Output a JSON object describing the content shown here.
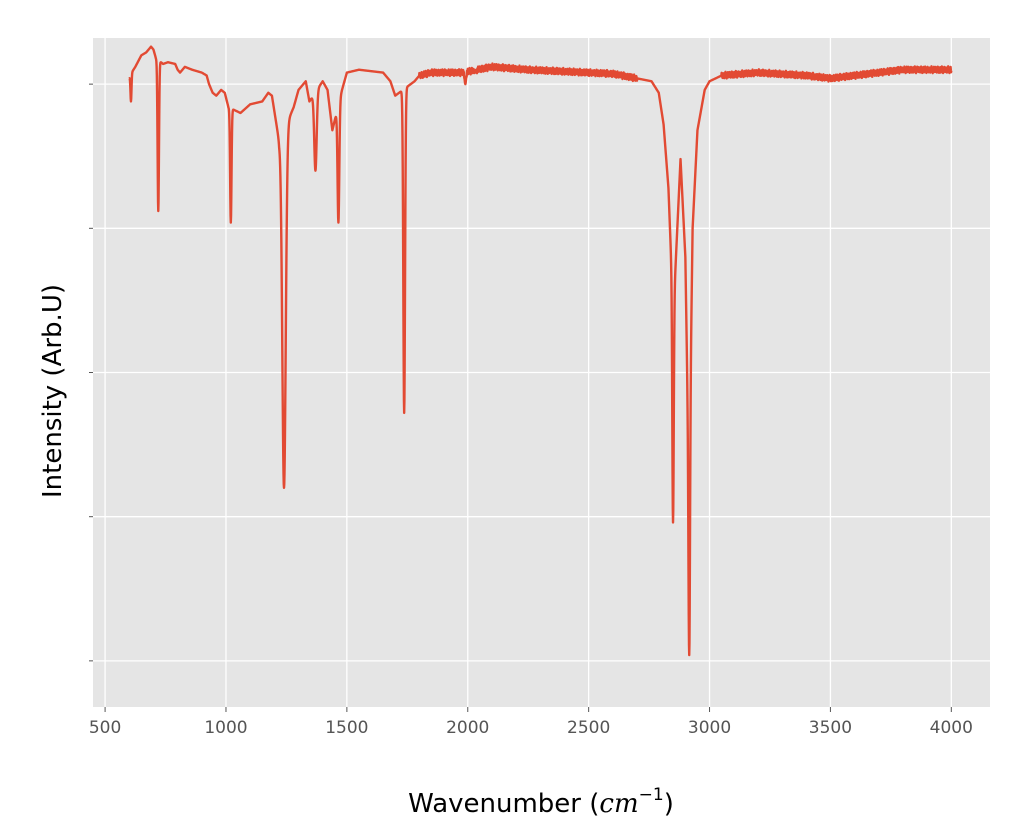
{
  "chart_data": {
    "type": "line",
    "title": "",
    "xlabel": {
      "prefix": "Wavenumber (",
      "unit_base": "cm",
      "unit_exponent": "−1",
      "suffix": ")"
    },
    "ylabel": "Intensity (Arb.U)",
    "xlim": [
      450,
      4160
    ],
    "ylim": [
      -0.08,
      1.08
    ],
    "xticks": [
      500,
      1000,
      1500,
      2000,
      2500,
      3000,
      3500,
      4000
    ],
    "yticks": [
      0.0,
      0.25,
      0.5,
      0.75,
      1.0
    ],
    "ytick_labels_visible": false,
    "grid": true,
    "background_color": "#e5e5e5",
    "grid_color": "#ffffff",
    "line_color": "#e24a33",
    "series": [
      {
        "baseline": [
          [
            600,
            1.01
          ],
          [
            610,
            1.02
          ],
          [
            625,
            1.03
          ],
          [
            650,
            1.05
          ],
          [
            670,
            1.055
          ],
          [
            690,
            1.065
          ],
          [
            700,
            1.06
          ],
          [
            710,
            1.045
          ],
          [
            740,
            1.035
          ],
          [
            760,
            1.038
          ],
          [
            790,
            1.035
          ],
          [
            800,
            1.025
          ],
          [
            810,
            1.02
          ],
          [
            830,
            1.03
          ],
          [
            860,
            1.025
          ],
          [
            900,
            1.02
          ],
          [
            920,
            1.015
          ],
          [
            930,
            1.0
          ],
          [
            945,
            0.985
          ],
          [
            960,
            0.98
          ],
          [
            980,
            0.99
          ],
          [
            995,
            0.985
          ],
          [
            1010,
            0.96
          ],
          [
            1060,
            0.95
          ],
          [
            1100,
            0.965
          ],
          [
            1150,
            0.97
          ],
          [
            1175,
            0.985
          ],
          [
            1190,
            0.98
          ],
          [
            1220,
            0.9
          ],
          [
            1280,
            0.96
          ],
          [
            1300,
            0.99
          ],
          [
            1330,
            1.005
          ],
          [
            1345,
            0.97
          ],
          [
            1400,
            1.005
          ],
          [
            1420,
            0.99
          ],
          [
            1440,
            0.92
          ],
          [
            1480,
            0.99
          ],
          [
            1500,
            1.02
          ],
          [
            1550,
            1.025
          ],
          [
            1650,
            1.02
          ],
          [
            1680,
            1.005
          ],
          [
            1700,
            0.98
          ],
          [
            1780,
            1.005
          ],
          [
            1800,
            1.015
          ],
          [
            1850,
            1.02
          ],
          [
            1980,
            1.02
          ],
          [
            2100,
            1.03
          ],
          [
            2250,
            1.025
          ],
          [
            2400,
            1.022
          ],
          [
            2600,
            1.018
          ],
          [
            2700,
            1.01
          ],
          [
            2760,
            1.005
          ],
          [
            2790,
            0.985
          ],
          [
            2810,
            0.93
          ],
          [
            2830,
            0.82
          ],
          [
            2850,
            0.6
          ],
          [
            2880,
            0.87
          ],
          [
            2900,
            0.7
          ],
          [
            2915,
            0.3
          ],
          [
            2930,
            0.75
          ],
          [
            2950,
            0.92
          ],
          [
            2980,
            0.99
          ],
          [
            3000,
            1.005
          ],
          [
            3050,
            1.015
          ],
          [
            3200,
            1.02
          ],
          [
            3400,
            1.015
          ],
          [
            3500,
            1.01
          ],
          [
            3600,
            1.015
          ],
          [
            3800,
            1.025
          ],
          [
            4000,
            1.025
          ]
        ],
        "peaks": [
          [
            607,
            0.97,
            3
          ],
          [
            720,
            0.78,
            4
          ],
          [
            1020,
            0.76,
            4
          ],
          [
            1240,
            0.3,
            10
          ],
          [
            1370,
            0.85,
            7
          ],
          [
            1465,
            0.76,
            5
          ],
          [
            1737,
            0.43,
            5
          ],
          [
            2849,
            0.24,
            4
          ],
          [
            2916,
            0.01,
            4
          ],
          [
            1990,
            1.0,
            4
          ],
          [
            2030,
            1.02,
            4
          ]
        ],
        "noise_ranges": [
          [
            1800,
            2700,
            0.006
          ],
          [
            3050,
            4000,
            0.006
          ]
        ]
      }
    ]
  }
}
